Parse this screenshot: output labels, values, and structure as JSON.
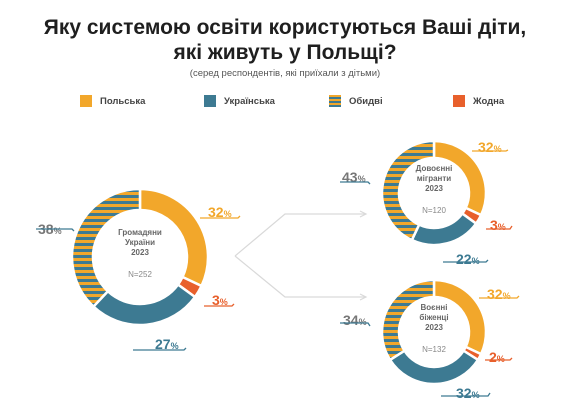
{
  "title_line1": "Яку системою освіти користуються Ваші діти,",
  "title_line2": "які живуть у Польщі?",
  "subtitle": "(серед респондентів, які приїхали з дітьми)",
  "colors": {
    "polish": "#F2A72B",
    "ukrainian": "#3D7A92",
    "both_stripe_a": "#F2A72B",
    "both_stripe_b": "#3D7A92",
    "none": "#E8602C",
    "leader": "#d9d9d9"
  },
  "legend": [
    {
      "key": "polish",
      "label": "Польська"
    },
    {
      "key": "ukrainian",
      "label": "Українська"
    },
    {
      "key": "both",
      "label": "Обидві"
    },
    {
      "key": "none",
      "label": "Жодна"
    }
  ],
  "chart_data": [
    {
      "type": "pie",
      "center_lines": [
        "Громадяни",
        "України",
        "2023"
      ],
      "n": "N=252",
      "slices": [
        {
          "key": "polish",
          "value": 32,
          "label": "32%"
        },
        {
          "key": "none",
          "value": 3,
          "label": "3%"
        },
        {
          "key": "ukrainian",
          "value": 27,
          "label": "27%"
        },
        {
          "key": "both",
          "value": 38,
          "label": "38%"
        }
      ]
    },
    {
      "type": "pie",
      "center_lines": [
        "Довоєнні",
        "мігранти",
        "2023"
      ],
      "n": "N=120",
      "slices": [
        {
          "key": "polish",
          "value": 32,
          "label": "32%"
        },
        {
          "key": "none",
          "value": 3,
          "label": "3%"
        },
        {
          "key": "ukrainian",
          "value": 22,
          "label": "22%"
        },
        {
          "key": "both",
          "value": 43,
          "label": "43%"
        }
      ]
    },
    {
      "type": "pie",
      "center_lines": [
        "Воєнні",
        "біженці",
        "2023"
      ],
      "n": "N=132",
      "slices": [
        {
          "key": "polish",
          "value": 32,
          "label": "32%"
        },
        {
          "key": "none",
          "value": 2,
          "label": "2%"
        },
        {
          "key": "ukrainian",
          "value": 32,
          "label": "32%"
        },
        {
          "key": "both",
          "value": 34,
          "label": "34%"
        }
      ]
    }
  ]
}
